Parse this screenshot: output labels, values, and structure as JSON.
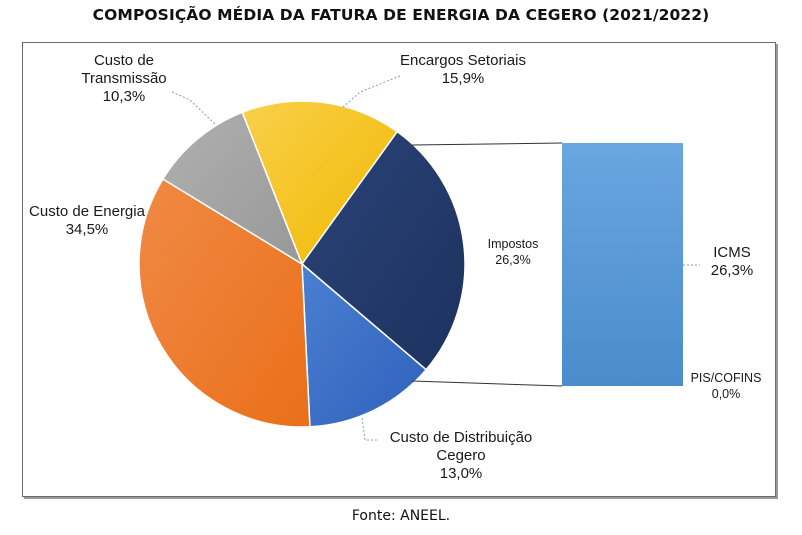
{
  "chart_data": {
    "type": "pie",
    "title": "COMPOSIÇÃO MÉDIA DA FATURA DE ENERGIA DA CEGERO (2021/2022)",
    "slices": [
      {
        "label": "Encargos Setoriais",
        "value": 15.9,
        "value_label": "15,9%",
        "color": "#f6c000"
      },
      {
        "label": "Impostos",
        "value": 26.3,
        "value_label": "26,3%",
        "color": "#22396b"
      },
      {
        "label": "Custo de Distribuição Cegero",
        "value": 13.0,
        "value_label": "13,0%",
        "color": "#3a6fc7"
      },
      {
        "label": "Custo de Energia",
        "value": 34.5,
        "value_label": "34,5%",
        "color": "#f07c2a"
      },
      {
        "label": "Custo de Transmissão",
        "value": 10.3,
        "value_label": "10,3%",
        "color": "#a3a3a3"
      }
    ],
    "breakdown": {
      "of": "Impostos",
      "type": "stacked-bar",
      "segments": [
        {
          "label": "ICMS",
          "value": 26.3,
          "value_label": "26,3%",
          "color": "#5b9bd5"
        },
        {
          "label": "PIS/COFINS",
          "value": 0.0,
          "value_label": "0,0%"
        }
      ]
    }
  },
  "labels": {
    "encargos": {
      "name": "Encargos Setoriais",
      "value": "15,9%"
    },
    "transmissao": {
      "name_line1": "Custo de",
      "name_line2": "Transmissão",
      "value": "10,3%"
    },
    "energia": {
      "name": "Custo de Energia",
      "value": "34,5%"
    },
    "distribuicao": {
      "name_line1": "Custo de Distribuição",
      "name_line2": "Cegero",
      "value": "13,0%"
    },
    "impostos": {
      "name": "Impostos",
      "value": "26,3%"
    },
    "icms": {
      "name": "ICMS",
      "value": "26,3%"
    },
    "piscofins": {
      "name": "PIS/COFINS",
      "value": "0,0%"
    }
  },
  "source": "Fonte: ANEEL."
}
